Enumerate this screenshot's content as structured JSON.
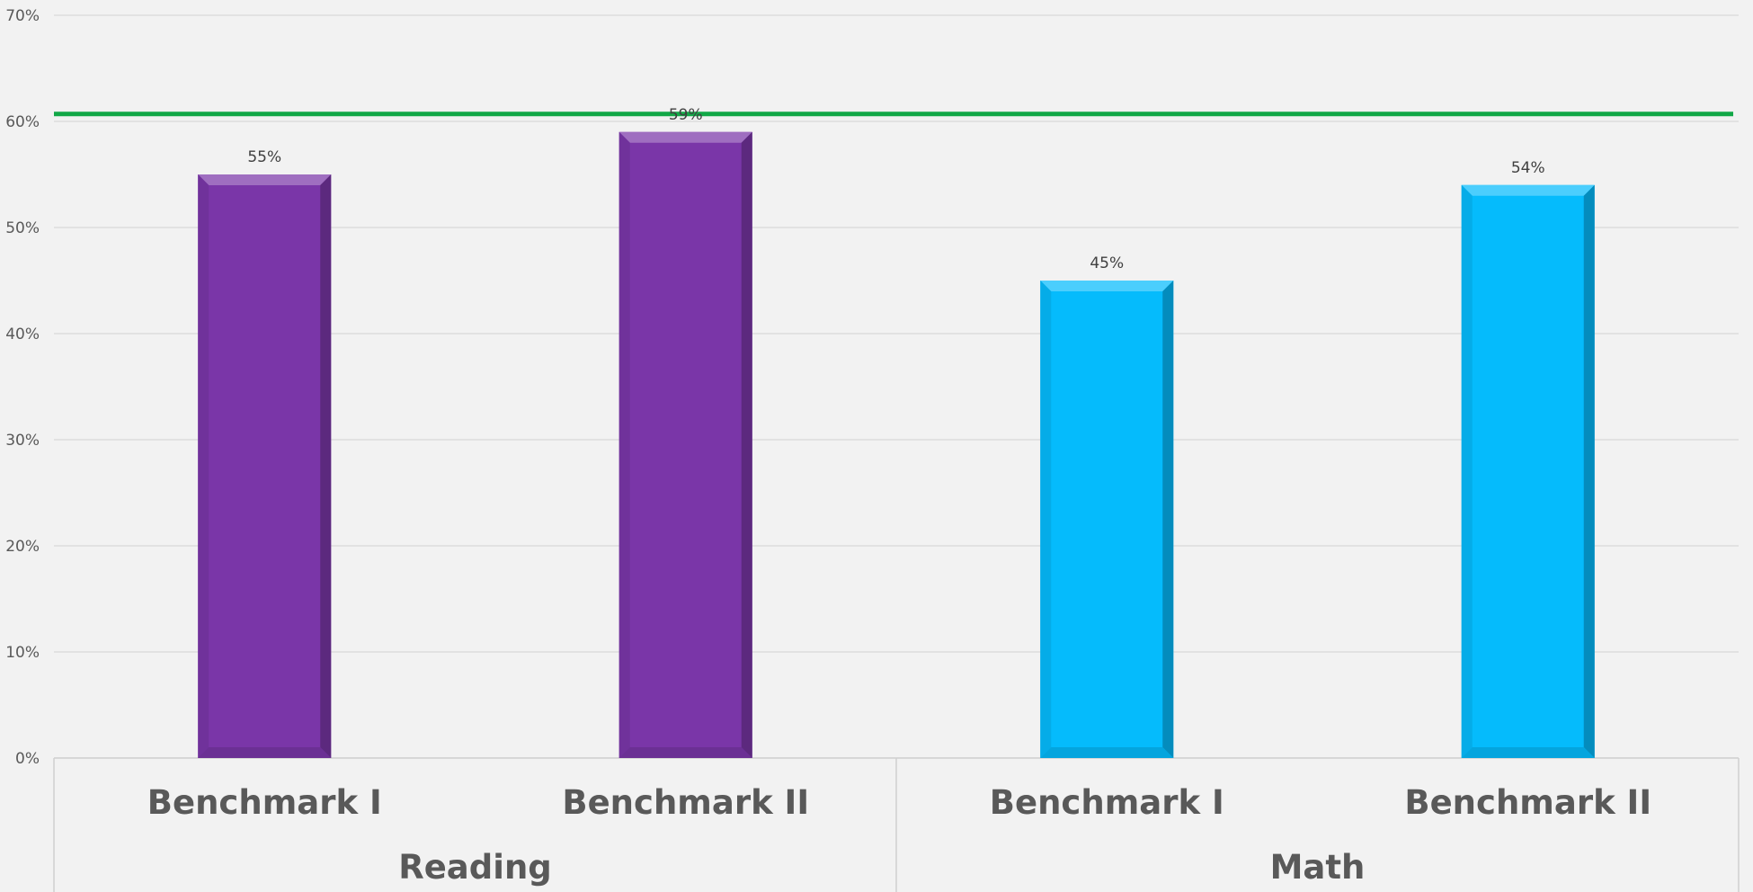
{
  "chart_data": {
    "type": "bar",
    "ylim": [
      0,
      70
    ],
    "y_ticks": [
      "0%",
      "10%",
      "20%",
      "30%",
      "40%",
      "50%",
      "60%",
      "70%"
    ],
    "groups": [
      {
        "label": "Reading",
        "color": "#7a36a8",
        "bars": [
          {
            "label": "Benchmark I",
            "value": 55,
            "value_label": "55%"
          },
          {
            "label": "Benchmark II",
            "value": 59,
            "value_label": "59%"
          }
        ]
      },
      {
        "label": "Math",
        "color": "#05bbfc",
        "bars": [
          {
            "label": "Benchmark I",
            "value": 45,
            "value_label": "45%"
          },
          {
            "label": "Benchmark II",
            "value": 54,
            "value_label": "54%"
          }
        ]
      }
    ],
    "reference_line": {
      "value": 60.7,
      "color": "#12a847"
    },
    "grid": true,
    "legend": "none"
  }
}
